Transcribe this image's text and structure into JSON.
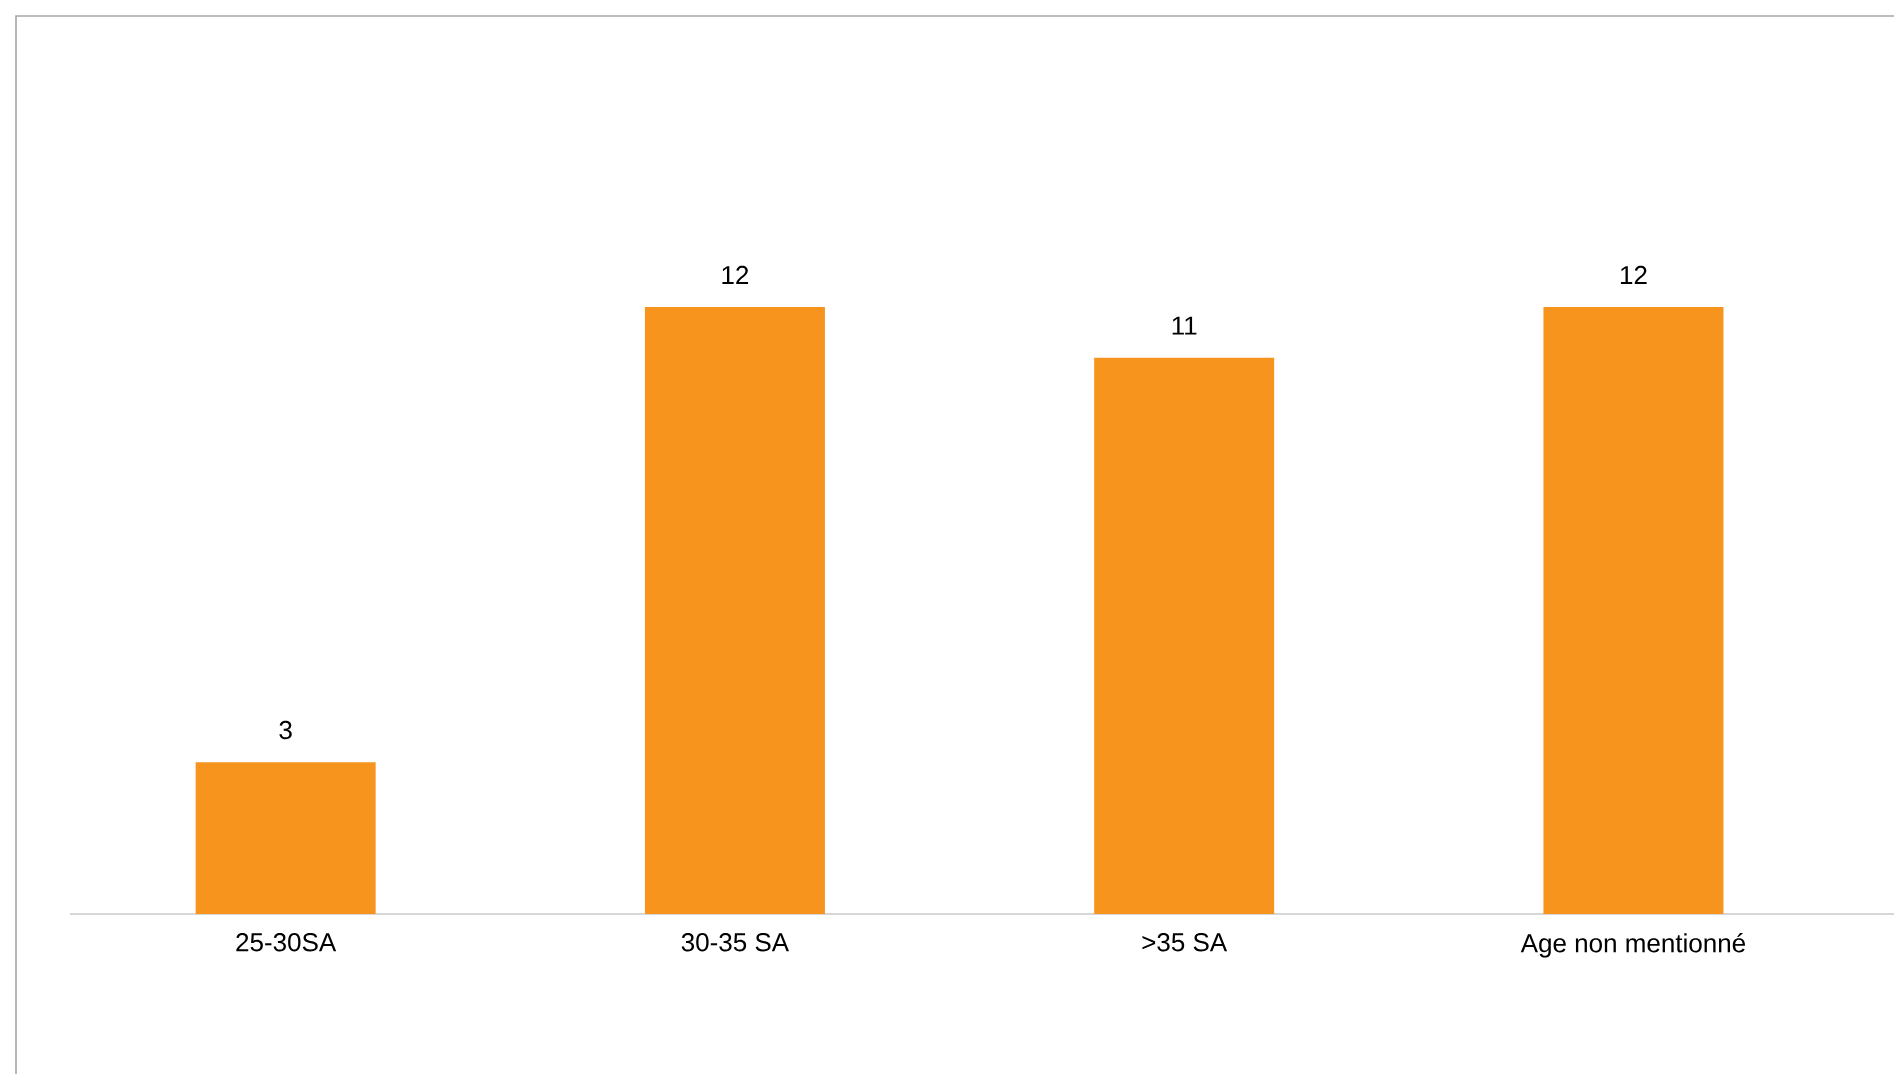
{
  "chart_data": {
    "type": "bar",
    "categories": [
      "25-30SA",
      "30-35 SA",
      ">35 SA",
      "Age non mentionné"
    ],
    "values": [
      3,
      12,
      11,
      12
    ],
    "color": "#f7941d",
    "data_labels": true
  }
}
